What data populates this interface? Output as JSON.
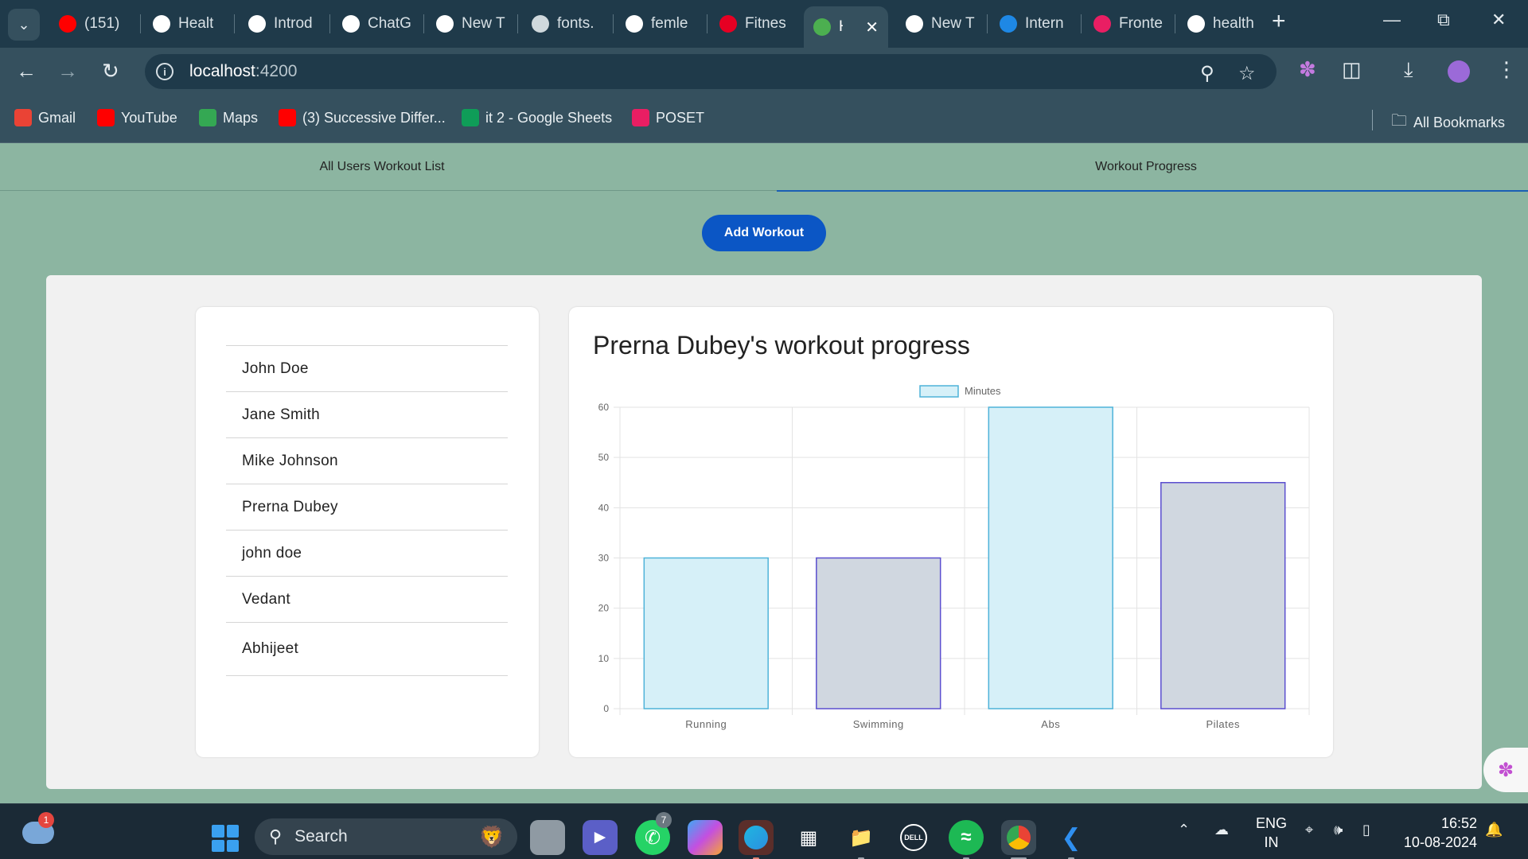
{
  "browser": {
    "tabs": [
      {
        "title": "(151)",
        "favicon": "youtube-icon",
        "color": "#ff0000"
      },
      {
        "title": "Healt",
        "favicon": "github-icon",
        "color": "#ffffff"
      },
      {
        "title": "Introd",
        "favicon": "openai-icon",
        "color": "#ffffff"
      },
      {
        "title": "ChatG",
        "favicon": "openai-icon",
        "color": "#ffffff"
      },
      {
        "title": "New T",
        "favicon": "chrome-icon",
        "color": "#ffffff"
      },
      {
        "title": "fonts.",
        "favicon": "globe-icon",
        "color": "#cfd8dc"
      },
      {
        "title": "femle",
        "favicon": "google-icon",
        "color": "#ffffff"
      },
      {
        "title": "Fitnes",
        "favicon": "pinterest-icon",
        "color": "#e60023"
      },
      {
        "title": "H",
        "favicon": "leaf-icon",
        "color": "#4caf50",
        "active": true
      },
      {
        "title": "New T",
        "favicon": "chrome-icon",
        "color": "#ffffff"
      },
      {
        "title": "Intern",
        "favicon": "is-icon",
        "color": "#1e88e5"
      },
      {
        "title": "Fronte",
        "favicon": "frontend-icon",
        "color": "#e91e63"
      },
      {
        "title": "health",
        "favicon": "google-icon",
        "color": "#ffffff"
      }
    ],
    "url_host": "localhost",
    "url_port": ":4200",
    "bookmarks": [
      {
        "label": "Gmail",
        "icon": "gmail-icon",
        "color": "#ea4335"
      },
      {
        "label": "YouTube",
        "icon": "youtube-icon",
        "color": "#ff0000"
      },
      {
        "label": "Maps",
        "icon": "maps-icon",
        "color": "#34a853"
      },
      {
        "label": "(3) Successive Differ...",
        "icon": "youtube-icon",
        "color": "#ff0000"
      },
      {
        "label": "it 2 - Google Sheets",
        "icon": "sheets-icon",
        "color": "#0f9d58"
      },
      {
        "label": "POSET",
        "icon": "poset-icon",
        "color": "#e91e63"
      }
    ],
    "all_bookmarks": "All Bookmarks"
  },
  "app": {
    "tabs": [
      "All Users Workout List",
      "Workout Progress"
    ],
    "add_workout_label": "Add Workout",
    "users": [
      "John Doe",
      "Jane Smith",
      "Mike Johnson",
      "Prerna Dubey",
      "john doe",
      "Vedant",
      "Abhijeet"
    ],
    "chart_title": "Prerna Dubey's workout progress"
  },
  "chart_data": {
    "type": "bar",
    "title": "Prerna Dubey's workout progress",
    "categories": [
      "Running",
      "Swimming",
      "Abs",
      "Pilates"
    ],
    "series": [
      {
        "name": "Minutes",
        "values": [
          30,
          30,
          60,
          45
        ]
      }
    ],
    "ylim": [
      0,
      60
    ],
    "yticks": [
      0,
      10,
      20,
      30,
      40,
      50,
      60
    ],
    "xlabel": "",
    "ylabel": "",
    "legend": "top-center",
    "grid": true,
    "bar_fills": [
      "#d6f0f8",
      "#d0d7e0",
      "#d6f0f8",
      "#d0d7e0"
    ],
    "bar_strokes": [
      "#4fb3d9",
      "#5b4fcf",
      "#4fb3d9",
      "#5b4fcf"
    ]
  },
  "taskbar": {
    "search_label": "Search",
    "notification_count": "1",
    "whatsapp_badge": "7",
    "lang_line1": "ENG",
    "lang_line2": "IN",
    "time": "16:52",
    "date": "10-08-2024"
  }
}
